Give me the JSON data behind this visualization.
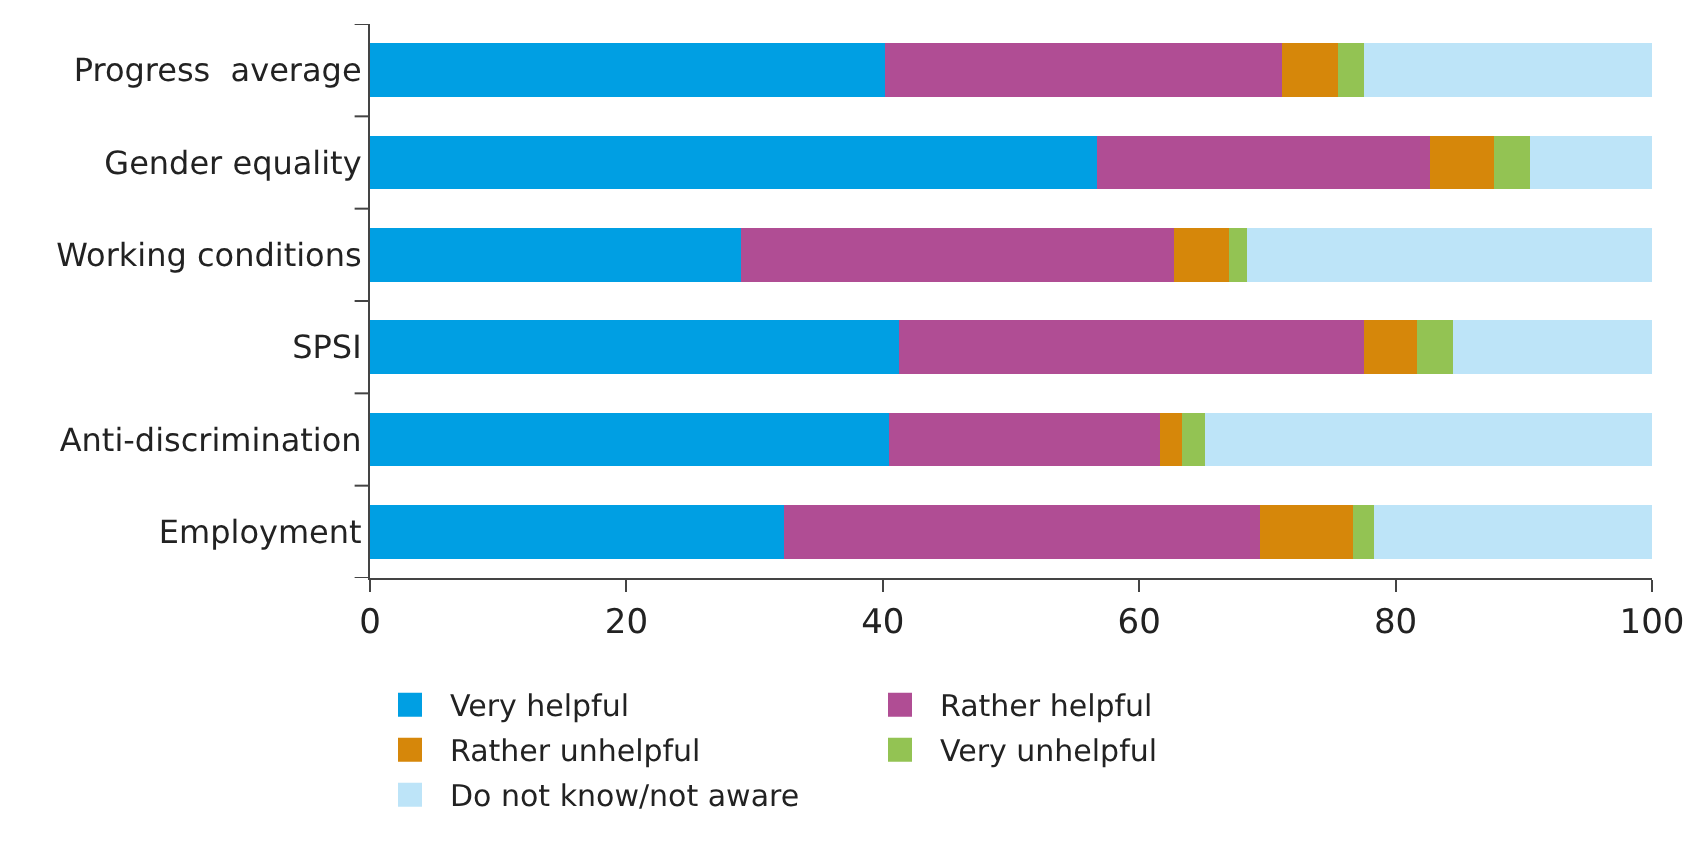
{
  "chart_data": {
    "type": "bar",
    "orientation": "horizontal",
    "stacked": true,
    "categories": [
      "Progress  average",
      "Gender equality",
      "Working conditions",
      "SPSI",
      "Anti-discrimination",
      "Employment"
    ],
    "series": [
      {
        "name": "Very helpful",
        "color": "#009fe3",
        "values": [
          40.2,
          56.7,
          28.9,
          41.3,
          40.5,
          32.3
        ]
      },
      {
        "name": "Rather helpful",
        "color": "#b04d94",
        "values": [
          30.9,
          26.0,
          33.8,
          36.2,
          21.1,
          37.1
        ]
      },
      {
        "name": "Rather unhelpful",
        "color": "#d6870a",
        "values": [
          4.4,
          5.0,
          4.3,
          4.2,
          1.7,
          7.3
        ]
      },
      {
        "name": "Very unhelpful",
        "color": "#93c353",
        "values": [
          2.0,
          2.8,
          1.4,
          2.8,
          1.8,
          1.6
        ]
      },
      {
        "name": "Do not know/not aware",
        "color": "#bde4f8",
        "values": [
          22.5,
          9.5,
          31.6,
          15.5,
          34.9,
          21.7
        ]
      }
    ],
    "xlim": [
      0,
      100
    ],
    "xticks": [
      0,
      20,
      40,
      60,
      80,
      100
    ],
    "grid": false,
    "legend": "bottom"
  }
}
